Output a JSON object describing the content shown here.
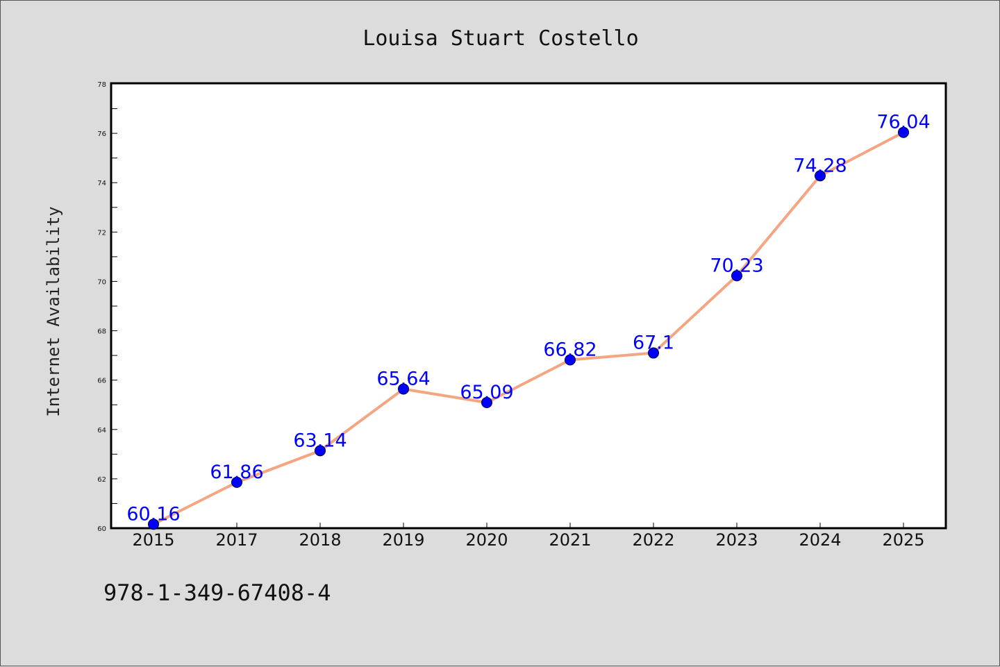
{
  "chart_data": {
    "type": "line",
    "title": "Louisa Stuart Costello",
    "xlabel": "",
    "ylabel": "Internet Availability",
    "categories": [
      "2015",
      "2017",
      "2018",
      "2019",
      "2020",
      "2021",
      "2022",
      "2023",
      "2024",
      "2025"
    ],
    "series": [
      {
        "values": [
          60.16,
          61.86,
          63.14,
          65.64,
          65.09,
          66.82,
          67.1,
          70.23,
          74.28,
          76.04
        ],
        "labels": [
          "60.16",
          "61.86",
          "63.14",
          "65.64",
          "65.09",
          "66.82",
          "67.1",
          "70.23",
          "74.28",
          "76.04"
        ],
        "line_color": "#f4a582",
        "marker_color": "#0000ff"
      }
    ],
    "ylim": [
      60,
      78
    ],
    "yticks": [
      "60",
      "62",
      "64",
      "66",
      "68",
      "70",
      "72",
      "74",
      "76",
      "78"
    ],
    "grid": false,
    "legend": "none",
    "footnote": "978-1-349-67408-4"
  }
}
